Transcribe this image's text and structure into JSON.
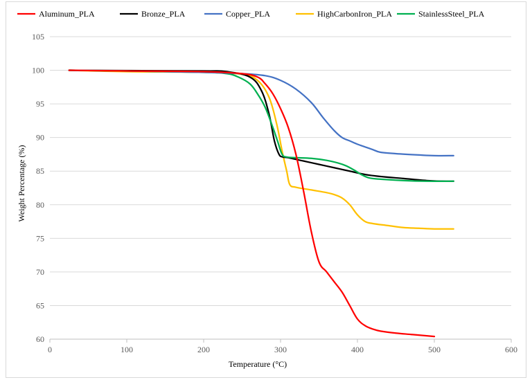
{
  "chart_data": {
    "type": "line",
    "title": "",
    "xlabel": "Temperature (°C)",
    "ylabel": "Weight Percentage (%)",
    "xlim": [
      0,
      600
    ],
    "ylim": [
      60,
      105
    ],
    "xticks": [
      0,
      100,
      200,
      300,
      400,
      500,
      600
    ],
    "yticks": [
      60,
      65,
      70,
      75,
      80,
      85,
      90,
      95,
      100,
      105
    ],
    "grid": "horizontal",
    "legend_position": "top",
    "series": [
      {
        "name": "Aluminum_PLA",
        "color": "#ff0000",
        "x": [
          25,
          100,
          200,
          250,
          270,
          280,
          290,
          300,
          310,
          320,
          330,
          340,
          350,
          360,
          370,
          380,
          390,
          400,
          410,
          420,
          430,
          450,
          470,
          490,
          500
        ],
        "y": [
          100,
          99.9,
          99.8,
          99.5,
          99.0,
          98.0,
          96.5,
          94.3,
          91.5,
          87.5,
          82.0,
          76.0,
          71.5,
          70.0,
          68.5,
          67.0,
          65.0,
          63.0,
          62.0,
          61.5,
          61.2,
          60.9,
          60.7,
          60.5,
          60.4
        ]
      },
      {
        "name": "Bronze_PLA",
        "color": "#000000",
        "x": [
          25,
          100,
          200,
          230,
          260,
          275,
          285,
          292,
          298,
          303,
          310,
          330,
          350,
          370,
          390,
          410,
          430,
          460,
          490,
          510,
          525
        ],
        "y": [
          100,
          99.95,
          99.9,
          99.8,
          99.0,
          97.0,
          93.5,
          89.5,
          87.5,
          87.1,
          87.0,
          86.5,
          86.0,
          85.5,
          85.0,
          84.5,
          84.2,
          83.9,
          83.6,
          83.5,
          83.5
        ]
      },
      {
        "name": "Copper_PLA",
        "color": "#4472c4",
        "x": [
          25,
          100,
          200,
          250,
          280,
          300,
          320,
          340,
          355,
          370,
          380,
          390,
          400,
          410,
          420,
          430,
          450,
          480,
          500,
          525
        ],
        "y": [
          100,
          99.9,
          99.7,
          99.5,
          99.2,
          98.5,
          97.2,
          95.2,
          93.0,
          91.0,
          90.0,
          89.5,
          89.0,
          88.6,
          88.2,
          87.8,
          87.6,
          87.4,
          87.3,
          87.3
        ]
      },
      {
        "name": "HighCarbonIron_PLA",
        "color": "#ffc000",
        "x": [
          25,
          100,
          200,
          250,
          270,
          285,
          295,
          302,
          308,
          312,
          320,
          340,
          360,
          370,
          380,
          390,
          400,
          410,
          420,
          440,
          460,
          480,
          500,
          525
        ],
        "y": [
          100,
          99.8,
          99.7,
          99.4,
          98.5,
          96.0,
          92.0,
          88.0,
          85.0,
          83.0,
          82.6,
          82.2,
          81.8,
          81.5,
          81.0,
          80.0,
          78.5,
          77.5,
          77.2,
          76.9,
          76.6,
          76.5,
          76.4,
          76.4
        ]
      },
      {
        "name": "StainlessSteel_PLA",
        "color": "#00b050",
        "x": [
          25,
          100,
          200,
          230,
          245,
          260,
          270,
          280,
          290,
          296,
          302,
          308,
          320,
          340,
          360,
          375,
          385,
          395,
          405,
          415,
          430,
          460,
          490,
          525
        ],
        "y": [
          100,
          99.9,
          99.7,
          99.5,
          99.0,
          98.0,
          96.5,
          94.5,
          91.5,
          89.5,
          87.5,
          87.1,
          87.0,
          86.9,
          86.6,
          86.2,
          85.8,
          85.2,
          84.5,
          84.0,
          83.8,
          83.6,
          83.5,
          83.5
        ]
      }
    ]
  }
}
